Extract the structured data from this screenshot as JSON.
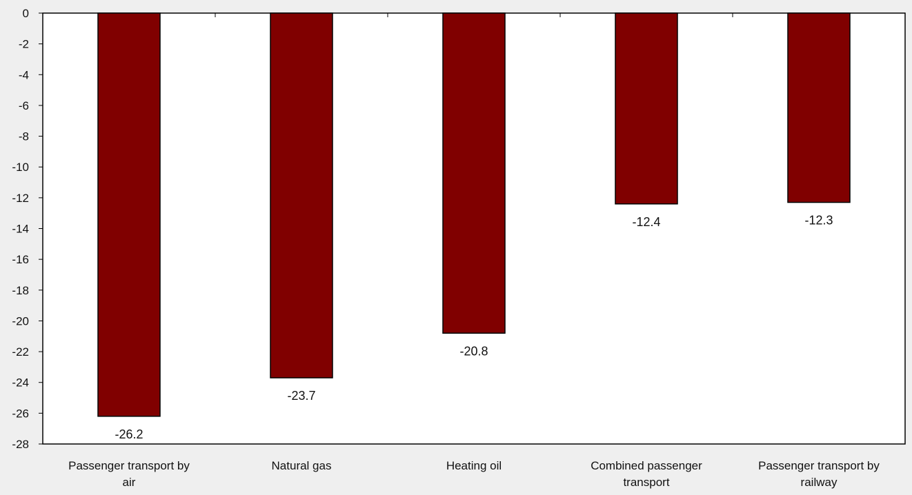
{
  "colors": {
    "bar_fill": "#800000",
    "bar_stroke": "#000000",
    "plot_background": "#ffffff",
    "page_background": "#efefef"
  },
  "chart_data": {
    "type": "bar",
    "title": "",
    "xlabel": "",
    "ylabel": "",
    "categories": [
      [
        "Passenger transport by",
        "air"
      ],
      [
        "Natural gas"
      ],
      [
        "Heating oil"
      ],
      [
        "Combined passenger",
        "transport"
      ],
      [
        "Passenger transport by",
        "railway"
      ]
    ],
    "values": [
      -26.2,
      -23.7,
      -20.8,
      -12.4,
      -12.3
    ],
    "data_labels": [
      "-26.2",
      "-23.7",
      "-20.8",
      "-12.4",
      "-12.3"
    ],
    "ylim": [
      -28,
      0
    ],
    "yticks": [
      0,
      -2,
      -4,
      -6,
      -8,
      -10,
      -12,
      -14,
      -16,
      -18,
      -20,
      -22,
      -24,
      -26,
      -28
    ],
    "ytick_labels": [
      "0",
      "-2",
      "-4",
      "-6",
      "-8",
      "-10",
      "-12",
      "-14",
      "-16",
      "-18",
      "-20",
      "-22",
      "-24",
      "-26",
      "-28"
    ],
    "grid": false,
    "legend": "none"
  }
}
